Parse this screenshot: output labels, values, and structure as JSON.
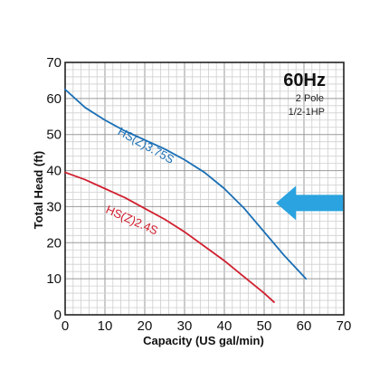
{
  "chart_data": {
    "type": "line",
    "xlabel": "Capacity (US gal/min)",
    "ylabel": "Total Head (ft)",
    "xlim": [
      0,
      70
    ],
    "ylim": [
      0,
      70
    ],
    "x_major_ticks": [
      0,
      10,
      20,
      30,
      40,
      50,
      60,
      70
    ],
    "y_major_ticks": [
      0,
      10,
      20,
      30,
      40,
      50,
      60,
      70
    ],
    "minor_step": 2,
    "grid": true,
    "annotations": {
      "frequency": "60Hz",
      "poles": "2 Pole",
      "power": "1/2-1HP"
    },
    "series": [
      {
        "name": "HS(Z)3.75S",
        "color": "#1a6fb5",
        "x": [
          0,
          5,
          10,
          15,
          20,
          25,
          30,
          35,
          40,
          45,
          50,
          55,
          60.5
        ],
        "y": [
          62.5,
          57.5,
          54,
          51,
          48.5,
          46,
          43,
          39.5,
          35,
          29.5,
          23,
          16.5,
          10
        ]
      },
      {
        "name": "HS(Z)2.4S",
        "color": "#d11f2f",
        "x": [
          0,
          5,
          10,
          15,
          20,
          25,
          30,
          35,
          40,
          45,
          50,
          52.5
        ],
        "y": [
          39.5,
          37.5,
          35,
          32.5,
          29.5,
          26.5,
          23,
          19,
          15,
          10.5,
          6,
          3.5
        ]
      }
    ],
    "marker": {
      "type": "arrow",
      "direction": "left",
      "color": "#2aa3e0",
      "points_to": {
        "x": 53,
        "y": 31
      }
    }
  }
}
